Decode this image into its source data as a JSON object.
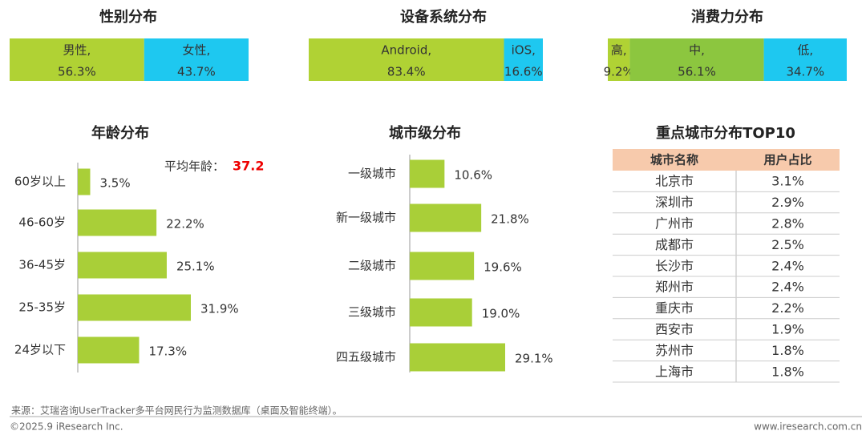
{
  "chart_data": [
    {
      "type": "stacked-bar",
      "title": "性别分布",
      "series": [
        {
          "name": "男性,",
          "color": "#b0d234",
          "values": [
            56.3
          ],
          "value_labels": [
            "56.3%"
          ]
        },
        {
          "name": "女性,",
          "color": "#1ec8f0",
          "values": [
            43.7
          ],
          "value_labels": [
            "43.7%"
          ]
        }
      ]
    },
    {
      "type": "stacked-bar",
      "title": "设备系统分布",
      "series": [
        {
          "name": "Android,",
          "color": "#b0d234",
          "values": [
            83.4
          ],
          "value_labels": [
            "83.4%"
          ]
        },
        {
          "name": "iOS,",
          "color": "#1ec8f0",
          "values": [
            16.6
          ],
          "value_labels": [
            "16.6%"
          ]
        }
      ]
    },
    {
      "type": "stacked-bar",
      "title": "消费力分布",
      "series": [
        {
          "name": "高,",
          "color": "#b0d234",
          "values": [
            9.2
          ],
          "value_labels": [
            "9.2%"
          ]
        },
        {
          "name": "中,",
          "color": "#8cc63f",
          "values": [
            56.1
          ],
          "value_labels": [
            "56.1%"
          ]
        },
        {
          "name": "低,",
          "color": "#1ec8f0",
          "values": [
            34.7
          ],
          "value_labels": [
            "34.7%"
          ]
        }
      ]
    },
    {
      "type": "hbar",
      "title": "年龄分布",
      "color": "#a9cf38",
      "categories": [
        "60岁以上",
        "46-60岁",
        "36-45岁",
        "25-35岁",
        "24岁以下"
      ],
      "values": [
        3.5,
        22.2,
        25.1,
        31.9,
        17.3
      ],
      "value_labels": [
        "3.5%",
        "22.2%",
        "25.1%",
        "31.9%",
        "17.3%"
      ],
      "annotation": {
        "label": "平均年龄：",
        "value": 37.2
      }
    },
    {
      "type": "hbar",
      "title": "城市级分布",
      "color": "#a9cf38",
      "categories": [
        "一级城市",
        "新一级城市",
        "二级城市",
        "三级城市",
        "四五级城市"
      ],
      "values": [
        10.6,
        21.8,
        19.6,
        19.0,
        29.1
      ],
      "value_labels": [
        "10.6%",
        "21.8%",
        "19.6%",
        "19.0%",
        "29.1%"
      ]
    }
  ],
  "table": {
    "title": "重点城市分布TOP10",
    "header": [
      "城市名称",
      "用户占比"
    ],
    "rows": [
      [
        "北京市",
        "3.1%"
      ],
      [
        "深圳市",
        "2.9%"
      ],
      [
        "广州市",
        "2.8%"
      ],
      [
        "成都市",
        "2.5%"
      ],
      [
        "长沙市",
        "2.4%"
      ],
      [
        "郑州市",
        "2.4%"
      ],
      [
        "重庆市",
        "2.2%"
      ],
      [
        "西安市",
        "1.9%"
      ],
      [
        "苏州市",
        "1.8%"
      ],
      [
        "上海市",
        "1.8%"
      ]
    ]
  },
  "footer": {
    "source": "来源：艾瑞咨询UserTracker多平台网民行为监测数据库（桌面及智能终端）。",
    "copyright": "©2025.9 iResearch Inc.",
    "website": "www.iresearch.com.cn"
  }
}
